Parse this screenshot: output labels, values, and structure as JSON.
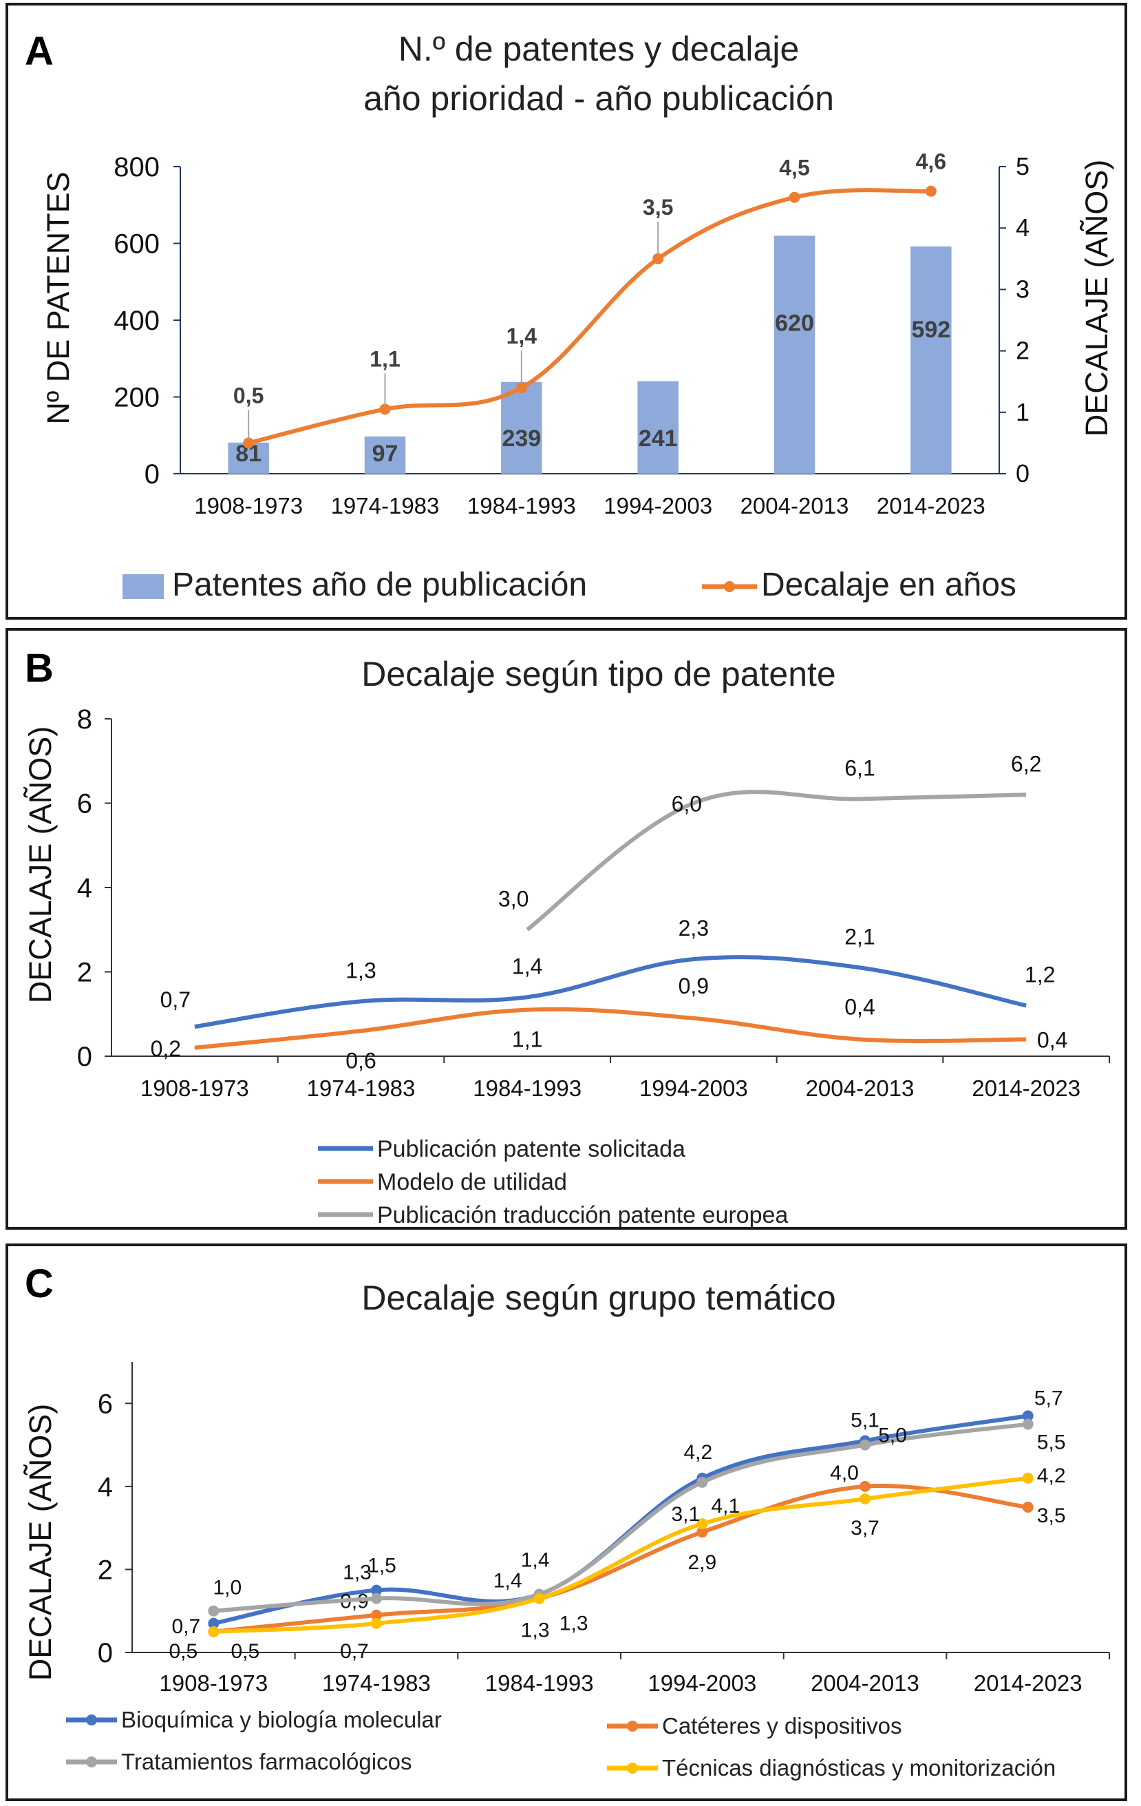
{
  "colors": {
    "bar": "#8eaadb",
    "orange": "#ed7d31",
    "blue": "#4472c4",
    "gray": "#a5a5a5",
    "yellow": "#ffc000",
    "axis_navy": "#1f3864",
    "label_dark": "#404040"
  },
  "chart_data": [
    {
      "panel_letter": "A",
      "type": "bar+line",
      "title_line1": "N.º de patentes y decalaje",
      "title_line2": "año prioridad - año publicación",
      "ylabel": "Nº DE PATENTES",
      "y2label": "DECALAJE (AÑOS)",
      "categories": [
        "1908-1973",
        "1974-1983",
        "1984-1993",
        "1994-2003",
        "2004-2013",
        "2014-2023"
      ],
      "ylim": [
        0,
        800
      ],
      "yticks": [
        "0",
        "200",
        "400",
        "600",
        "800"
      ],
      "y2lim": [
        0,
        5
      ],
      "y2ticks": [
        "0",
        "1",
        "2",
        "3",
        "4",
        "5"
      ],
      "series": [
        {
          "name": "Patentes año de publicación",
          "kind": "bar",
          "values": [
            81,
            97,
            239,
            241,
            620,
            592
          ],
          "labels": [
            "81",
            "97",
            "239",
            "241",
            "620",
            "592"
          ]
        },
        {
          "name": "Decalaje en años",
          "kind": "line",
          "axis": "secondary",
          "values": [
            0.5,
            1.05,
            1.4,
            3.5,
            4.5,
            4.6
          ],
          "labels": [
            "0,5",
            "1,1",
            "1,4",
            "3,5",
            "4,5",
            "4,6"
          ]
        }
      ],
      "legend": [
        "Patentes año de publicación",
        "Decalaje en años"
      ]
    },
    {
      "panel_letter": "B",
      "type": "line",
      "title": "Decalaje según tipo de patente",
      "ylabel": "DECALAJE (AÑOS)",
      "categories": [
        "1908-1973",
        "1974-1983",
        "1984-1993",
        "1994-2003",
        "2004-2013",
        "2014-2023"
      ],
      "ylim": [
        0,
        8
      ],
      "yticks": [
        "0",
        "2",
        "4",
        "6",
        "8"
      ],
      "series": [
        {
          "name": "Publicación patente solicitada",
          "values": [
            0.7,
            1.3,
            1.4,
            2.3,
            2.1,
            1.2
          ],
          "labels": [
            "0,7",
            "1,3",
            "1,4",
            "2,3",
            "2,1",
            "1,2"
          ]
        },
        {
          "name": "Modelo de utilidad",
          "values": [
            0.2,
            0.6,
            1.1,
            0.9,
            0.4,
            0.4
          ],
          "labels": [
            "0,2",
            "0,6",
            "1,1",
            "0,9",
            "0,4",
            "0,4"
          ]
        },
        {
          "name": "Publicación traducción patente europea",
          "values": [
            null,
            null,
            3.0,
            6.0,
            6.1,
            6.2
          ],
          "labels": [
            "",
            "",
            "3,0",
            "6,0",
            "6,1",
            "6,2"
          ]
        }
      ],
      "legend": [
        "Publicación patente solicitada",
        "Modelo de utilidad",
        "Publicación traducción patente europea"
      ]
    },
    {
      "panel_letter": "C",
      "type": "line",
      "title": "Decalaje según grupo temático",
      "ylabel": "DECALAJE (AÑOS)",
      "categories": [
        "1908-1973",
        "1974-1983",
        "1984-1993",
        "1994-2003",
        "2004-2013",
        "2014-2023"
      ],
      "ylim": [
        0,
        7
      ],
      "yticks": [
        "0",
        "2",
        "4",
        "6"
      ],
      "series": [
        {
          "name": "Bioquímica y biología molecular",
          "values": [
            0.7,
            1.5,
            1.4,
            4.2,
            5.1,
            5.7
          ],
          "labels": [
            "0,7",
            "1,5",
            "1,4",
            "4,2",
            "5,1",
            "5,7"
          ]
        },
        {
          "name": "Catéteres y dispositivos",
          "values": [
            0.5,
            0.9,
            1.3,
            2.9,
            4.0,
            3.5
          ],
          "labels": [
            "0,5",
            "0,9",
            "1,3",
            "2,9",
            "4,0",
            "3,5"
          ]
        },
        {
          "name": "Tratamientos farmacológicos",
          "values": [
            1.0,
            1.3,
            1.4,
            4.1,
            5.0,
            5.5
          ],
          "labels": [
            "1,0",
            "1,3",
            "1,4",
            "4,1",
            "5,0",
            "5,5"
          ]
        },
        {
          "name": "Técnicas diagnósticas y monitorización",
          "values": [
            0.5,
            0.7,
            1.3,
            3.1,
            3.7,
            4.2
          ],
          "labels": [
            "0,5",
            "0,7",
            "1,3",
            "3,1",
            "3,7",
            "4,2"
          ]
        }
      ],
      "legend": [
        "Bioquímica y biología molecular",
        "Catéteres y dispositivos",
        "Tratamientos farmacológicos",
        "Técnicas diagnósticas y monitorización"
      ]
    }
  ]
}
